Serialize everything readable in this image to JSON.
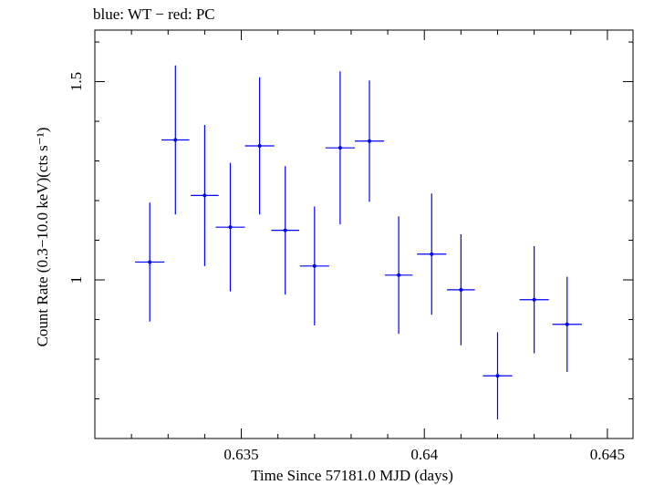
{
  "header": {
    "title": "blue: WT − red: PC"
  },
  "axes": {
    "xlabel": "Time Since 57181.0 MJD (days)",
    "ylabel": "Count Rate (0.3−10.0 keV)(cts s⁻¹)",
    "xticks": [
      "0.635",
      "0.64",
      "0.645"
    ],
    "yticks": [
      "1",
      "1.5"
    ]
  },
  "colors": {
    "series": "#0000ff",
    "axes": "#000000"
  },
  "chart_data": {
    "type": "scatter",
    "title": "blue: WT − red: PC",
    "xlabel": "Time Since 57181.0 MJD (days)",
    "ylabel": "Count Rate (0.3−10.0 keV)(cts s⁻¹)",
    "xlim": [
      0.631,
      0.6457
    ],
    "ylim": [
      0.6,
      1.63
    ],
    "grid": false,
    "error_bars": true,
    "series": [
      {
        "name": "WT",
        "color": "#0000ff",
        "points": [
          {
            "x": 0.6325,
            "y": 1.045,
            "xerr": 0.0004,
            "yerr": 0.15
          },
          {
            "x": 0.6332,
            "y": 1.353,
            "xerr": 0.00038,
            "yerr": 0.188
          },
          {
            "x": 0.634,
            "y": 1.213,
            "xerr": 0.00038,
            "yerr": 0.178
          },
          {
            "x": 0.6347,
            "y": 1.133,
            "xerr": 0.0004,
            "yerr": 0.162
          },
          {
            "x": 0.6355,
            "y": 1.338,
            "xerr": 0.0004,
            "yerr": 0.173
          },
          {
            "x": 0.6362,
            "y": 1.125,
            "xerr": 0.00038,
            "yerr": 0.162
          },
          {
            "x": 0.637,
            "y": 1.035,
            "xerr": 0.0004,
            "yerr": 0.15
          },
          {
            "x": 0.6377,
            "y": 1.333,
            "xerr": 0.0004,
            "yerr": 0.193
          },
          {
            "x": 0.6385,
            "y": 1.35,
            "xerr": 0.0004,
            "yerr": 0.153
          },
          {
            "x": 0.6393,
            "y": 1.012,
            "xerr": 0.00038,
            "yerr": 0.148
          },
          {
            "x": 0.6402,
            "y": 1.065,
            "xerr": 0.0004,
            "yerr": 0.153
          },
          {
            "x": 0.641,
            "y": 0.975,
            "xerr": 0.00038,
            "yerr": 0.14
          },
          {
            "x": 0.642,
            "y": 0.758,
            "xerr": 0.0004,
            "yerr": 0.11
          },
          {
            "x": 0.643,
            "y": 0.95,
            "xerr": 0.0004,
            "yerr": 0.135
          },
          {
            "x": 0.6439,
            "y": 0.888,
            "xerr": 0.0004,
            "yerr": 0.12
          }
        ]
      }
    ]
  }
}
